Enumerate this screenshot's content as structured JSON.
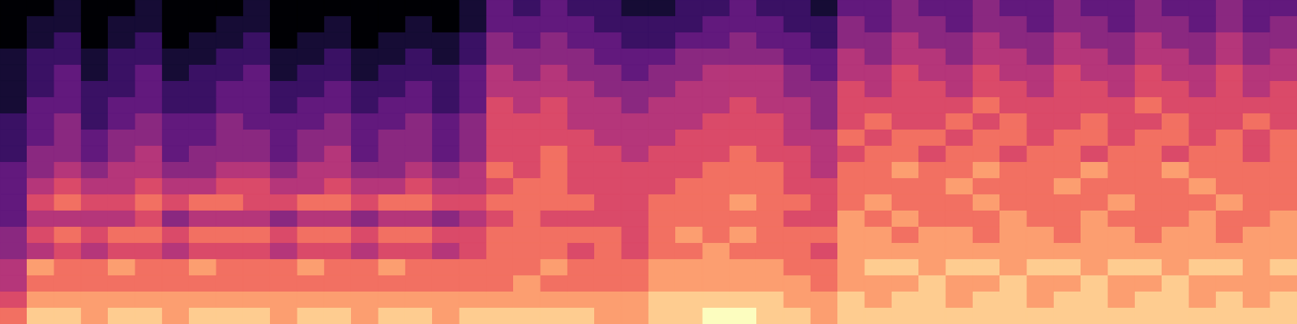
{
  "chart_data": {
    "type": "heatmap",
    "tick_labels": false,
    "color": "magma",
    "color_range": [
      0,
      10
    ],
    "cells": [
      [
        0,
        0,
        1,
        0,
        0,
        1,
        0,
        0,
        0,
        1,
        0,
        0,
        0,
        0,
        0,
        0,
        0,
        1,
        3,
        2,
        3,
        2,
        2,
        1,
        1,
        2,
        2,
        3,
        2,
        2,
        1,
        3,
        3,
        4,
        3,
        3,
        4,
        3,
        3,
        4,
        3,
        3,
        4,
        3,
        3,
        4,
        3,
        3
      ],
      [
        0,
        1,
        1,
        0,
        1,
        1,
        0,
        0,
        1,
        1,
        0,
        0,
        1,
        0,
        0,
        1,
        0,
        1,
        3,
        3,
        3,
        3,
        2,
        2,
        2,
        2,
        3,
        3,
        3,
        2,
        2,
        4,
        3,
        4,
        4,
        3,
        4,
        4,
        3,
        4,
        4,
        3,
        4,
        4,
        3,
        4,
        3,
        4
      ],
      [
        0,
        1,
        2,
        0,
        1,
        2,
        0,
        1,
        1,
        2,
        0,
        1,
        1,
        0,
        1,
        1,
        1,
        2,
        4,
        3,
        4,
        3,
        3,
        2,
        2,
        3,
        3,
        4,
        3,
        3,
        2,
        4,
        4,
        5,
        4,
        4,
        5,
        4,
        4,
        5,
        4,
        4,
        5,
        4,
        4,
        5,
        4,
        4
      ],
      [
        1,
        2,
        2,
        1,
        2,
        2,
        1,
        1,
        2,
        2,
        1,
        1,
        2,
        1,
        1,
        2,
        1,
        2,
        4,
        4,
        4,
        4,
        3,
        3,
        3,
        4,
        4,
        4,
        4,
        3,
        3,
        5,
        4,
        5,
        5,
        4,
        5,
        5,
        4,
        5,
        5,
        4,
        5,
        5,
        4,
        5,
        4,
        5
      ],
      [
        1,
        2,
        3,
        1,
        2,
        3,
        1,
        2,
        2,
        3,
        1,
        2,
        2,
        1,
        2,
        2,
        2,
        3,
        5,
        4,
        5,
        4,
        4,
        3,
        4,
        4,
        5,
        5,
        5,
        4,
        3,
        5,
        5,
        6,
        5,
        5,
        6,
        5,
        5,
        6,
        5,
        5,
        6,
        5,
        5,
        6,
        5,
        5
      ],
      [
        1,
        2,
        3,
        2,
        2,
        3,
        2,
        2,
        3,
        3,
        2,
        2,
        3,
        2,
        2,
        3,
        2,
        3,
        5,
        5,
        5,
        5,
        4,
        4,
        4,
        5,
        5,
        5,
        5,
        4,
        4,
        6,
        5,
        6,
        6,
        5,
        6,
        6,
        5,
        6,
        6,
        5,
        6,
        6,
        5,
        6,
        5,
        6
      ],
      [
        1,
        3,
        3,
        2,
        3,
        3,
        2,
        2,
        3,
        3,
        2,
        3,
        3,
        2,
        3,
        3,
        2,
        3,
        6,
        5,
        6,
        5,
        5,
        4,
        5,
        5,
        5,
        6,
        5,
        5,
        4,
        6,
        6,
        6,
        6,
        6,
        7,
        6,
        6,
        6,
        6,
        6,
        7,
        6,
        6,
        6,
        6,
        6
      ],
      [
        2,
        3,
        4,
        2,
        3,
        4,
        3,
        3,
        4,
        3,
        3,
        3,
        4,
        3,
        3,
        4,
        3,
        4,
        6,
        6,
        6,
        5,
        5,
        5,
        5,
        5,
        6,
        6,
        6,
        5,
        4,
        6,
        7,
        6,
        6,
        7,
        6,
        7,
        6,
        6,
        7,
        6,
        6,
        7,
        6,
        6,
        7,
        6
      ],
      [
        2,
        3,
        4,
        3,
        4,
        4,
        3,
        3,
        4,
        4,
        3,
        4,
        4,
        3,
        4,
        4,
        3,
        4,
        6,
        6,
        6,
        6,
        5,
        5,
        5,
        6,
        6,
        6,
        6,
        5,
        5,
        7,
        6,
        7,
        7,
        6,
        7,
        7,
        6,
        7,
        7,
        6,
        7,
        7,
        6,
        7,
        6,
        7
      ],
      [
        2,
        4,
        4,
        3,
        4,
        5,
        3,
        4,
        4,
        4,
        3,
        4,
        5,
        3,
        4,
        4,
        3,
        4,
        6,
        6,
        7,
        6,
        6,
        5,
        6,
        6,
        6,
        7,
        6,
        6,
        5,
        6,
        7,
        7,
        6,
        7,
        7,
        6,
        7,
        7,
        6,
        7,
        7,
        6,
        7,
        7,
        6,
        7
      ],
      [
        3,
        4,
        5,
        4,
        5,
        5,
        4,
        4,
        5,
        5,
        4,
        5,
        5,
        4,
        4,
        5,
        4,
        5,
        7,
        6,
        7,
        6,
        6,
        6,
        6,
        6,
        7,
        7,
        7,
        6,
        5,
        7,
        7,
        8,
        7,
        7,
        8,
        7,
        7,
        7,
        8,
        7,
        7,
        8,
        7,
        7,
        7,
        7
      ],
      [
        3,
        5,
        6,
        5,
        5,
        6,
        5,
        5,
        6,
        6,
        5,
        5,
        6,
        5,
        5,
        6,
        5,
        5,
        6,
        7,
        7,
        6,
        6,
        6,
        6,
        7,
        7,
        7,
        7,
        6,
        6,
        7,
        7,
        7,
        7,
        8,
        7,
        7,
        7,
        8,
        7,
        7,
        7,
        7,
        8,
        7,
        7,
        7
      ],
      [
        3,
        6,
        7,
        6,
        6,
        7,
        6,
        7,
        7,
        6,
        6,
        7,
        7,
        6,
        7,
        7,
        6,
        6,
        7,
        7,
        7,
        7,
        6,
        6,
        7,
        7,
        7,
        8,
        7,
        7,
        6,
        7,
        8,
        7,
        7,
        7,
        8,
        7,
        7,
        7,
        7,
        8,
        7,
        7,
        7,
        8,
        7,
        7
      ],
      [
        3,
        5,
        5,
        5,
        5,
        6,
        4,
        5,
        5,
        5,
        4,
        5,
        5,
        4,
        5,
        5,
        4,
        5,
        6,
        7,
        6,
        6,
        6,
        6,
        7,
        7,
        7,
        7,
        7,
        6,
        6,
        8,
        7,
        8,
        7,
        7,
        7,
        8,
        7,
        7,
        8,
        7,
        7,
        7,
        8,
        7,
        7,
        8
      ],
      [
        4,
        6,
        7,
        6,
        7,
        7,
        6,
        7,
        7,
        7,
        6,
        7,
        7,
        6,
        7,
        7,
        6,
        6,
        7,
        7,
        7,
        7,
        7,
        6,
        7,
        8,
        7,
        8,
        7,
        7,
        7,
        8,
        8,
        7,
        8,
        8,
        7,
        8,
        8,
        7,
        8,
        8,
        7,
        8,
        8,
        7,
        8,
        8
      ],
      [
        4,
        5,
        6,
        5,
        6,
        6,
        5,
        6,
        6,
        6,
        5,
        6,
        6,
        5,
        6,
        6,
        5,
        6,
        7,
        7,
        7,
        6,
        7,
        6,
        7,
        7,
        8,
        7,
        7,
        7,
        6,
        8,
        8,
        8,
        8,
        8,
        8,
        8,
        8,
        8,
        8,
        8,
        8,
        8,
        8,
        8,
        8,
        8
      ],
      [
        5,
        8,
        7,
        7,
        8,
        7,
        7,
        8,
        7,
        7,
        7,
        8,
        7,
        7,
        8,
        7,
        7,
        7,
        7,
        7,
        8,
        7,
        7,
        7,
        8,
        8,
        8,
        8,
        8,
        7,
        7,
        8,
        9,
        9,
        8,
        9,
        9,
        8,
        9,
        9,
        8,
        9,
        9,
        8,
        9,
        9,
        8,
        9
      ],
      [
        5,
        7,
        7,
        7,
        7,
        7,
        7,
        7,
        7,
        7,
        7,
        7,
        7,
        7,
        7,
        7,
        7,
        7,
        7,
        8,
        7,
        7,
        7,
        7,
        8,
        8,
        8,
        8,
        8,
        8,
        7,
        8,
        8,
        8,
        9,
        8,
        8,
        9,
        8,
        8,
        9,
        8,
        8,
        9,
        8,
        8,
        8,
        8
      ],
      [
        6,
        8,
        8,
        8,
        8,
        8,
        8,
        8,
        8,
        8,
        8,
        8,
        8,
        8,
        8,
        8,
        8,
        8,
        8,
        8,
        8,
        8,
        8,
        8,
        9,
        9,
        9,
        9,
        9,
        8,
        8,
        9,
        8,
        9,
        9,
        8,
        9,
        9,
        8,
        9,
        9,
        8,
        9,
        9,
        8,
        9,
        8,
        9
      ],
      [
        7,
        9,
        9,
        8,
        9,
        9,
        8,
        9,
        9,
        9,
        8,
        9,
        9,
        8,
        9,
        9,
        8,
        9,
        9,
        9,
        9,
        9,
        8,
        8,
        9,
        9,
        10,
        10,
        9,
        9,
        8,
        9,
        9,
        9,
        9,
        9,
        9,
        9,
        9,
        9,
        9,
        9,
        9,
        9,
        9,
        9,
        9,
        9
      ]
    ]
  }
}
